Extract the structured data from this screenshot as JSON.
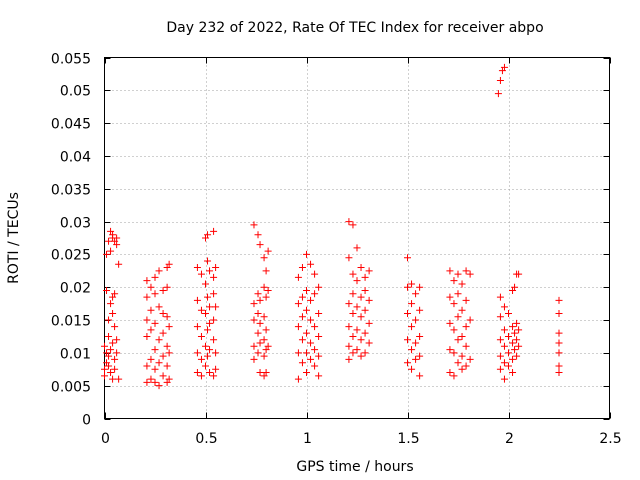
{
  "chart_data": {
    "type": "scatter",
    "title": "Day 232 of 2022, Rate Of TEC Index for receiver abpo",
    "xlabel": "GPS time / hours",
    "ylabel": "ROTI / TECUs",
    "xlim": [
      0,
      2.5
    ],
    "ylim": [
      0,
      0.055
    ],
    "xticks": [
      0,
      0.5,
      1,
      1.5,
      2,
      2.5
    ],
    "xtick_labels": [
      "0",
      "0.5",
      "1",
      "1.5",
      "2",
      "2.5"
    ],
    "yticks": [
      0,
      0.005,
      0.01,
      0.015,
      0.02,
      0.025,
      0.03,
      0.035,
      0.04,
      0.045,
      0.05,
      0.055
    ],
    "ytick_labels": [
      "0",
      "0.005",
      "0.01",
      "0.015",
      "0.02",
      "0.025",
      "0.03",
      "0.035",
      "0.04",
      "0.045",
      "0.05",
      "0.055"
    ],
    "grid": true,
    "marker": "+",
    "marker_color": "#ff0000",
    "series": [
      {
        "name": "ROTI",
        "points": [
          [
            0.0,
            0.011
          ],
          [
            0.0,
            0.0075
          ],
          [
            0.0,
            0.0065
          ],
          [
            0.01,
            0.025
          ],
          [
            0.01,
            0.0195
          ],
          [
            0.01,
            0.01
          ],
          [
            0.01,
            0.0085
          ],
          [
            0.02,
            0.027
          ],
          [
            0.02,
            0.015
          ],
          [
            0.02,
            0.0125
          ],
          [
            0.02,
            0.0095
          ],
          [
            0.02,
            0.008
          ],
          [
            0.03,
            0.0285
          ],
          [
            0.03,
            0.0255
          ],
          [
            0.03,
            0.0175
          ],
          [
            0.03,
            0.0105
          ],
          [
            0.03,
            0.007
          ],
          [
            0.04,
            0.028
          ],
          [
            0.04,
            0.0275
          ],
          [
            0.04,
            0.0185
          ],
          [
            0.04,
            0.016
          ],
          [
            0.04,
            0.0115
          ],
          [
            0.04,
            0.006
          ],
          [
            0.05,
            0.027
          ],
          [
            0.05,
            0.019
          ],
          [
            0.05,
            0.014
          ],
          [
            0.05,
            0.009
          ],
          [
            0.05,
            0.0075
          ],
          [
            0.06,
            0.0275
          ],
          [
            0.06,
            0.0265
          ],
          [
            0.06,
            0.012
          ],
          [
            0.06,
            0.01
          ],
          [
            0.07,
            0.0235
          ],
          [
            0.07,
            0.006
          ],
          [
            0.21,
            0.021
          ],
          [
            0.21,
            0.0185
          ],
          [
            0.21,
            0.015
          ],
          [
            0.21,
            0.0125
          ],
          [
            0.21,
            0.008
          ],
          [
            0.21,
            0.0055
          ],
          [
            0.23,
            0.02
          ],
          [
            0.23,
            0.0165
          ],
          [
            0.23,
            0.0135
          ],
          [
            0.23,
            0.009
          ],
          [
            0.23,
            0.006
          ],
          [
            0.25,
            0.0215
          ],
          [
            0.25,
            0.019
          ],
          [
            0.25,
            0.0145
          ],
          [
            0.25,
            0.0105
          ],
          [
            0.25,
            0.0075
          ],
          [
            0.25,
            0.0055
          ],
          [
            0.27,
            0.0225
          ],
          [
            0.27,
            0.017
          ],
          [
            0.27,
            0.012
          ],
          [
            0.27,
            0.0085
          ],
          [
            0.27,
            0.005
          ],
          [
            0.29,
            0.0195
          ],
          [
            0.29,
            0.016
          ],
          [
            0.29,
            0.013
          ],
          [
            0.29,
            0.0095
          ],
          [
            0.29,
            0.0065
          ],
          [
            0.31,
            0.023
          ],
          [
            0.31,
            0.02
          ],
          [
            0.31,
            0.0155
          ],
          [
            0.31,
            0.011
          ],
          [
            0.31,
            0.008
          ],
          [
            0.31,
            0.0055
          ],
          [
            0.32,
            0.0235
          ],
          [
            0.32,
            0.014
          ],
          [
            0.32,
            0.01
          ],
          [
            0.32,
            0.006
          ],
          [
            0.46,
            0.023
          ],
          [
            0.46,
            0.018
          ],
          [
            0.46,
            0.014
          ],
          [
            0.46,
            0.01
          ],
          [
            0.46,
            0.007
          ],
          [
            0.48,
            0.022
          ],
          [
            0.48,
            0.0165
          ],
          [
            0.48,
            0.0125
          ],
          [
            0.48,
            0.009
          ],
          [
            0.48,
            0.0065
          ],
          [
            0.5,
            0.0275
          ],
          [
            0.5,
            0.0205
          ],
          [
            0.5,
            0.016
          ],
          [
            0.5,
            0.011
          ],
          [
            0.5,
            0.008
          ],
          [
            0.51,
            0.028
          ],
          [
            0.51,
            0.024
          ],
          [
            0.51,
            0.0185
          ],
          [
            0.51,
            0.0135
          ],
          [
            0.51,
            0.0095
          ],
          [
            0.52,
            0.0225
          ],
          [
            0.52,
            0.017
          ],
          [
            0.52,
            0.0145
          ],
          [
            0.52,
            0.0105
          ],
          [
            0.52,
            0.007
          ],
          [
            0.54,
            0.0285
          ],
          [
            0.54,
            0.0215
          ],
          [
            0.54,
            0.019
          ],
          [
            0.54,
            0.015
          ],
          [
            0.54,
            0.012
          ],
          [
            0.54,
            0.0065
          ],
          [
            0.55,
            0.023
          ],
          [
            0.55,
            0.017
          ],
          [
            0.55,
            0.01
          ],
          [
            0.55,
            0.0075
          ],
          [
            0.74,
            0.0295
          ],
          [
            0.74,
            0.0175
          ],
          [
            0.74,
            0.015
          ],
          [
            0.74,
            0.011
          ],
          [
            0.74,
            0.009
          ],
          [
            0.76,
            0.028
          ],
          [
            0.76,
            0.019
          ],
          [
            0.76,
            0.016
          ],
          [
            0.76,
            0.013
          ],
          [
            0.76,
            0.01
          ],
          [
            0.77,
            0.0265
          ],
          [
            0.77,
            0.018
          ],
          [
            0.77,
            0.0145
          ],
          [
            0.77,
            0.0115
          ],
          [
            0.77,
            0.007
          ],
          [
            0.79,
            0.0245
          ],
          [
            0.79,
            0.02
          ],
          [
            0.79,
            0.0155
          ],
          [
            0.79,
            0.012
          ],
          [
            0.79,
            0.0095
          ],
          [
            0.79,
            0.0065
          ],
          [
            0.8,
            0.0225
          ],
          [
            0.8,
            0.0185
          ],
          [
            0.8,
            0.0135
          ],
          [
            0.8,
            0.0105
          ],
          [
            0.8,
            0.007
          ],
          [
            0.81,
            0.0255
          ],
          [
            0.81,
            0.0195
          ],
          [
            0.81,
            0.011
          ],
          [
            0.96,
            0.0215
          ],
          [
            0.96,
            0.0175
          ],
          [
            0.96,
            0.014
          ],
          [
            0.96,
            0.01
          ],
          [
            0.96,
            0.006
          ],
          [
            0.98,
            0.023
          ],
          [
            0.98,
            0.0185
          ],
          [
            0.98,
            0.0155
          ],
          [
            0.98,
            0.012
          ],
          [
            0.98,
            0.0085
          ],
          [
            1.0,
            0.025
          ],
          [
            1.0,
            0.0195
          ],
          [
            1.0,
            0.0165
          ],
          [
            1.0,
            0.013
          ],
          [
            1.0,
            0.01
          ],
          [
            1.0,
            0.007
          ],
          [
            1.02,
            0.0235
          ],
          [
            1.02,
            0.018
          ],
          [
            1.02,
            0.015
          ],
          [
            1.02,
            0.0115
          ],
          [
            1.02,
            0.009
          ],
          [
            1.04,
            0.022
          ],
          [
            1.04,
            0.019
          ],
          [
            1.04,
            0.014
          ],
          [
            1.04,
            0.0105
          ],
          [
            1.04,
            0.008
          ],
          [
            1.06,
            0.02
          ],
          [
            1.06,
            0.016
          ],
          [
            1.06,
            0.0125
          ],
          [
            1.06,
            0.0095
          ],
          [
            1.06,
            0.0065
          ],
          [
            1.21,
            0.03
          ],
          [
            1.21,
            0.0245
          ],
          [
            1.21,
            0.0175
          ],
          [
            1.21,
            0.014
          ],
          [
            1.21,
            0.011
          ],
          [
            1.21,
            0.009
          ],
          [
            1.23,
            0.0295
          ],
          [
            1.23,
            0.022
          ],
          [
            1.23,
            0.019
          ],
          [
            1.23,
            0.016
          ],
          [
            1.23,
            0.0125
          ],
          [
            1.23,
            0.01
          ],
          [
            1.25,
            0.026
          ],
          [
            1.25,
            0.021
          ],
          [
            1.25,
            0.017
          ],
          [
            1.25,
            0.0135
          ],
          [
            1.25,
            0.0105
          ],
          [
            1.27,
            0.023
          ],
          [
            1.27,
            0.0185
          ],
          [
            1.27,
            0.0155
          ],
          [
            1.27,
            0.012
          ],
          [
            1.27,
            0.0095
          ],
          [
            1.29,
            0.0215
          ],
          [
            1.29,
            0.0195
          ],
          [
            1.29,
            0.0165
          ],
          [
            1.29,
            0.013
          ],
          [
            1.29,
            0.01
          ],
          [
            1.31,
            0.0225
          ],
          [
            1.31,
            0.018
          ],
          [
            1.31,
            0.0145
          ],
          [
            1.31,
            0.0115
          ],
          [
            1.5,
            0.0245
          ],
          [
            1.5,
            0.02
          ],
          [
            1.5,
            0.016
          ],
          [
            1.5,
            0.012
          ],
          [
            1.5,
            0.0085
          ],
          [
            1.52,
            0.0205
          ],
          [
            1.52,
            0.0175
          ],
          [
            1.52,
            0.014
          ],
          [
            1.52,
            0.0105
          ],
          [
            1.52,
            0.0075
          ],
          [
            1.54,
            0.019
          ],
          [
            1.54,
            0.015
          ],
          [
            1.54,
            0.0115
          ],
          [
            1.54,
            0.009
          ],
          [
            1.56,
            0.02
          ],
          [
            1.56,
            0.0165
          ],
          [
            1.56,
            0.0125
          ],
          [
            1.56,
            0.0095
          ],
          [
            1.56,
            0.0065
          ],
          [
            1.71,
            0.0225
          ],
          [
            1.71,
            0.0185
          ],
          [
            1.71,
            0.0145
          ],
          [
            1.71,
            0.0105
          ],
          [
            1.71,
            0.007
          ],
          [
            1.73,
            0.021
          ],
          [
            1.73,
            0.0175
          ],
          [
            1.73,
            0.0135
          ],
          [
            1.73,
            0.01
          ],
          [
            1.73,
            0.0065
          ],
          [
            1.75,
            0.022
          ],
          [
            1.75,
            0.019
          ],
          [
            1.75,
            0.0155
          ],
          [
            1.75,
            0.012
          ],
          [
            1.75,
            0.0085
          ],
          [
            1.77,
            0.0205
          ],
          [
            1.77,
            0.0165
          ],
          [
            1.77,
            0.0125
          ],
          [
            1.77,
            0.0095
          ],
          [
            1.77,
            0.0075
          ],
          [
            1.79,
            0.0225
          ],
          [
            1.79,
            0.018
          ],
          [
            1.79,
            0.014
          ],
          [
            1.79,
            0.011
          ],
          [
            1.79,
            0.008
          ],
          [
            1.81,
            0.022
          ],
          [
            1.81,
            0.015
          ],
          [
            1.81,
            0.009
          ],
          [
            1.95,
            0.0495
          ],
          [
            1.96,
            0.0515
          ],
          [
            1.97,
            0.053
          ],
          [
            1.98,
            0.0535
          ],
          [
            1.96,
            0.0185
          ],
          [
            1.96,
            0.0155
          ],
          [
            1.96,
            0.012
          ],
          [
            1.96,
            0.0095
          ],
          [
            1.96,
            0.0075
          ],
          [
            1.98,
            0.017
          ],
          [
            1.98,
            0.0135
          ],
          [
            1.98,
            0.011
          ],
          [
            1.98,
            0.0085
          ],
          [
            1.98,
            0.006
          ],
          [
            2.0,
            0.016
          ],
          [
            2.0,
            0.0125
          ],
          [
            2.0,
            0.01
          ],
          [
            2.0,
            0.008
          ],
          [
            2.02,
            0.0195
          ],
          [
            2.02,
            0.014
          ],
          [
            2.02,
            0.0115
          ],
          [
            2.02,
            0.009
          ],
          [
            2.02,
            0.007
          ],
          [
            2.03,
            0.02
          ],
          [
            2.03,
            0.013
          ],
          [
            2.03,
            0.0105
          ],
          [
            2.04,
            0.022
          ],
          [
            2.04,
            0.0145
          ],
          [
            2.04,
            0.012
          ],
          [
            2.04,
            0.0095
          ],
          [
            2.05,
            0.022
          ],
          [
            2.05,
            0.0135
          ],
          [
            2.05,
            0.011
          ],
          [
            2.25,
            0.018
          ],
          [
            2.25,
            0.016
          ],
          [
            2.25,
            0.013
          ],
          [
            2.25,
            0.0115
          ],
          [
            2.25,
            0.01
          ],
          [
            2.25,
            0.008
          ],
          [
            2.25,
            0.007
          ]
        ]
      }
    ]
  }
}
